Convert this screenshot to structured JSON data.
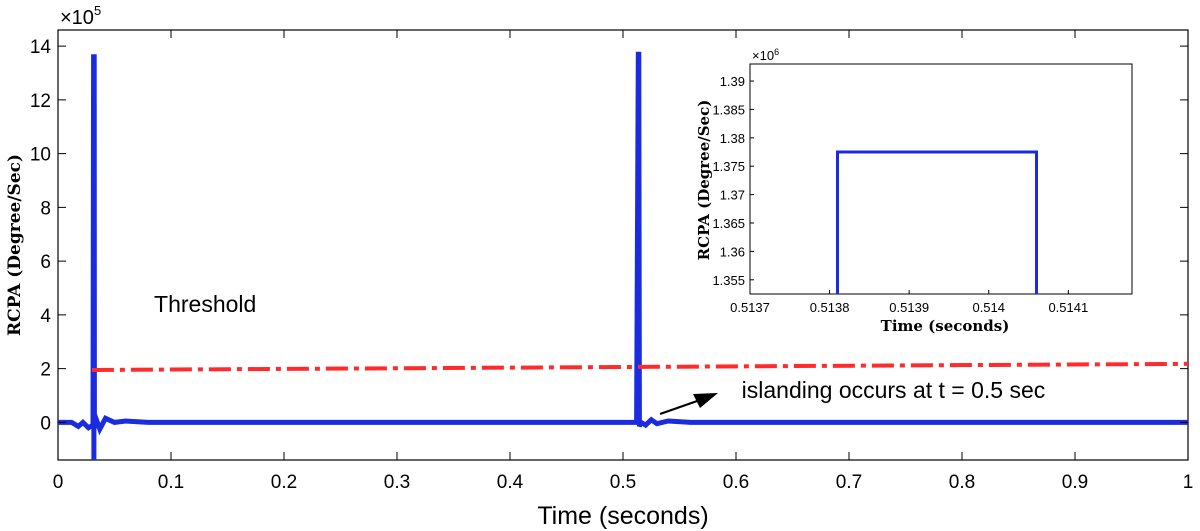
{
  "chart_data": [
    {
      "type": "line",
      "name": "main",
      "xlabel": "Time (seconds)",
      "ylabel": "RCPA (Degree/Sec)",
      "xlim": [
        0,
        1
      ],
      "ylim": [
        -1.4,
        14.6
      ],
      "exponent_label": "×10",
      "exponent_power": "5",
      "xticks": [
        0,
        0.1,
        0.2,
        0.3,
        0.4,
        0.5,
        0.6,
        0.7,
        0.8,
        0.9,
        1
      ],
      "xtick_labels": [
        "0",
        "0.1",
        "0.2",
        "0.3",
        "0.4",
        "0.5",
        "0.6",
        "0.7",
        "0.8",
        "0.9",
        "1"
      ],
      "yticks": [
        0,
        2,
        4,
        6,
        8,
        10,
        12,
        14
      ],
      "ytick_labels": [
        "0",
        "2",
        "4",
        "6",
        "8",
        "10",
        "12",
        "14"
      ],
      "series": [
        {
          "name": "RCPA",
          "color": "#1a2be0",
          "x": [
            0,
            0.012,
            0.018,
            0.022,
            0.027,
            0.031,
            0.0315,
            0.0318,
            0.032,
            0.0322,
            0.034,
            0.037,
            0.042,
            0.05,
            0.06,
            0.08,
            0.1,
            0.15,
            0.2,
            0.3,
            0.4,
            0.5,
            0.512,
            0.5135,
            0.514,
            0.5145,
            0.516,
            0.52,
            0.525,
            0.53,
            0.54,
            0.56,
            0.6,
            0.7,
            0.8,
            0.9,
            1
          ],
          "y": [
            0,
            0,
            -0.15,
            0,
            -0.2,
            -0.1,
            13.7,
            -1.4,
            13.7,
            -0.2,
            0.1,
            -0.25,
            0.15,
            0,
            0.05,
            0,
            0,
            0,
            0,
            0,
            0,
            0,
            0,
            13.7,
            13.7,
            -0.15,
            0,
            -0.1,
            0.1,
            -0.05,
            0.05,
            0,
            0,
            0,
            0,
            0,
            0
          ]
        },
        {
          "name": "Threshold",
          "color": "#ff2a2a",
          "x": [
            0.03,
            1
          ],
          "y": [
            1.95,
            2.18
          ]
        }
      ],
      "annotations": [
        {
          "text": "Threshold",
          "x": 0.085,
          "y": 4.1
        },
        {
          "text": "islanding occurs at t = 0.5 sec",
          "x": 0.605,
          "y": 0.9
        }
      ]
    },
    {
      "type": "line",
      "name": "inset",
      "xlabel": "Time (seconds)",
      "ylabel": "RCPA (Degree/Sec)",
      "xlim": [
        0.5137,
        0.51418
      ],
      "ylim": [
        1.3525,
        1.393
      ],
      "exponent_label": "×10",
      "exponent_power": "6",
      "xticks": [
        0.5137,
        0.5138,
        0.5139,
        0.514,
        0.5141
      ],
      "xtick_labels": [
        "0.5137",
        "0.5138",
        "0.5139",
        "0.514",
        "0.5141"
      ],
      "yticks": [
        1.355,
        1.36,
        1.365,
        1.37,
        1.375,
        1.38,
        1.385,
        1.39
      ],
      "ytick_labels": [
        "1.355",
        "1.36",
        "1.365",
        "1.37",
        "1.375",
        "1.38",
        "1.385",
        "1.39"
      ],
      "series": [
        {
          "name": "RCPA",
          "color": "#1a2be0",
          "x": [
            0.51381,
            0.51381,
            0.51406,
            0.51406
          ],
          "y": [
            1.3525,
            1.3775,
            1.3775,
            1.3525
          ]
        }
      ]
    }
  ]
}
